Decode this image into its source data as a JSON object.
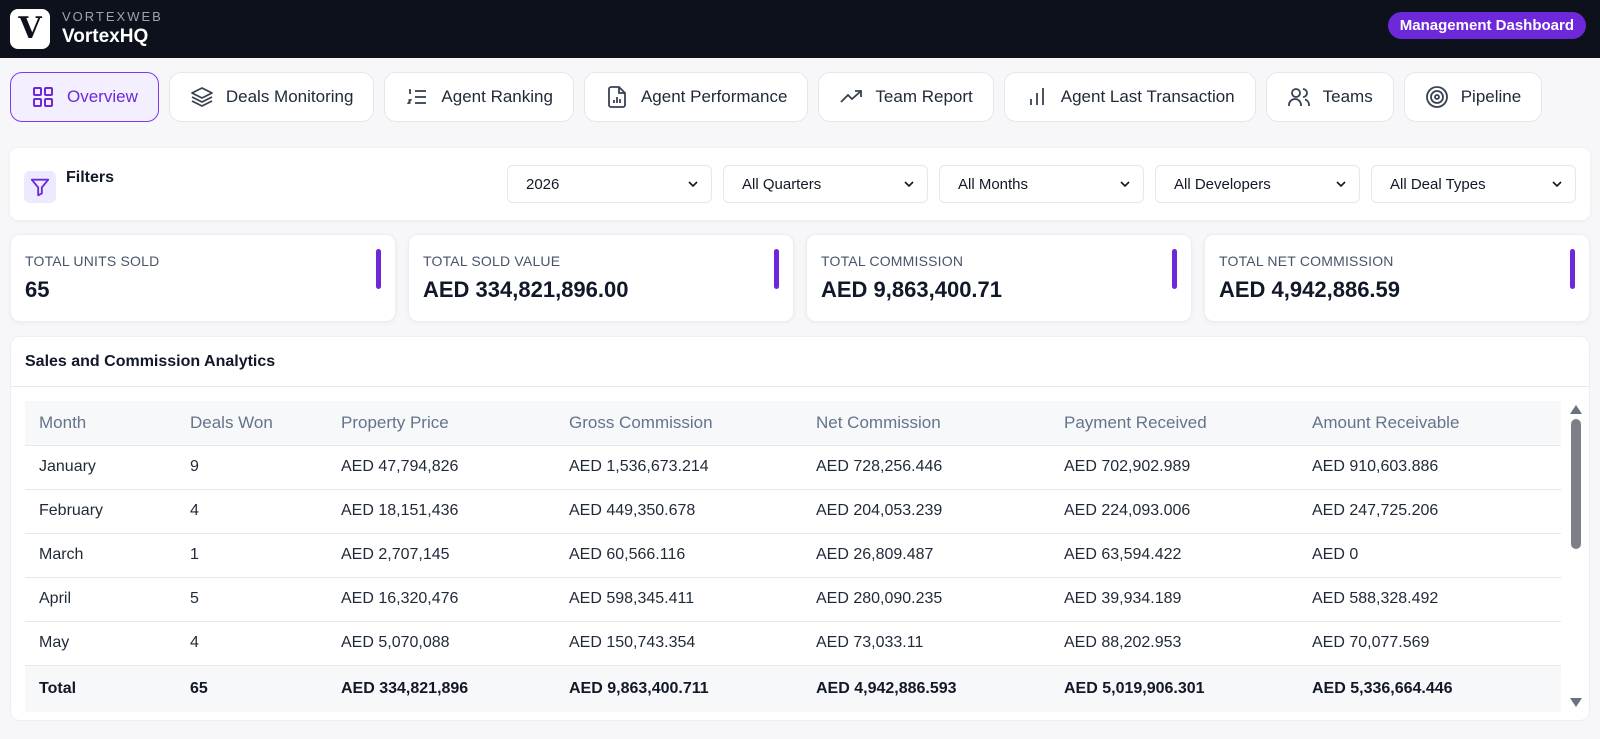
{
  "header": {
    "brand_small": "VORTEXWEB",
    "brand_main": "VortexHQ",
    "logo_letter": "V",
    "badge": "Management Dashboard"
  },
  "tabs": [
    {
      "label": "Overview",
      "icon": "grid-icon",
      "active": true
    },
    {
      "label": "Deals Monitoring",
      "icon": "layers-icon"
    },
    {
      "label": "Agent Ranking",
      "icon": "list-ordered-icon"
    },
    {
      "label": "Agent Performance",
      "icon": "file-chart-icon"
    },
    {
      "label": "Team Report",
      "icon": "trending-up-icon"
    },
    {
      "label": "Agent Last Transaction",
      "icon": "bar-chart-icon"
    },
    {
      "label": "Teams",
      "icon": "users-icon"
    },
    {
      "label": "Pipeline",
      "icon": "target-icon"
    }
  ],
  "filters": {
    "label": "Filters",
    "year": "2026",
    "quarter": "All Quarters",
    "month": "All Months",
    "developer": "All Developers",
    "deal_type": "All Deal Types"
  },
  "cards": [
    {
      "label": "TOTAL UNITS SOLD",
      "value": "65"
    },
    {
      "label": "TOTAL SOLD VALUE",
      "value": "AED 334,821,896.00"
    },
    {
      "label": "TOTAL COMMISSION",
      "value": "AED 9,863,400.71"
    },
    {
      "label": "TOTAL NET COMMISSION",
      "value": "AED 4,942,886.59"
    }
  ],
  "analytics": {
    "title": "Sales and Commission Analytics",
    "columns": [
      "Month",
      "Deals Won",
      "Property Price",
      "Gross Commission",
      "Net Commission",
      "Payment Received",
      "Amount Receivable"
    ],
    "rows": [
      [
        "January",
        "9",
        "AED 47,794,826",
        "AED 1,536,673.214",
        "AED 728,256.446",
        "AED 702,902.989",
        "AED 910,603.886"
      ],
      [
        "February",
        "4",
        "AED 18,151,436",
        "AED 449,350.678",
        "AED 204,053.239",
        "AED 224,093.006",
        "AED 247,725.206"
      ],
      [
        "March",
        "1",
        "AED 2,707,145",
        "AED 60,566.116",
        "AED 26,809.487",
        "AED 63,594.422",
        "AED 0"
      ],
      [
        "April",
        "5",
        "AED 16,320,476",
        "AED 598,345.411",
        "AED 280,090.235",
        "AED 39,934.189",
        "AED 588,328.492"
      ],
      [
        "May",
        "4",
        "AED 5,070,088",
        "AED 150,743.354",
        "AED 73,033.11",
        "AED 88,202.953",
        "AED 70,077.569"
      ]
    ],
    "total": [
      "Total",
      "65",
      "AED 334,821,896",
      "AED 9,863,400.711",
      "AED 4,942,886.593",
      "AED 5,019,906.301",
      "AED 5,336,664.446"
    ]
  },
  "colors": {
    "accent": "#6d28d9",
    "topbar": "#0d111c"
  }
}
